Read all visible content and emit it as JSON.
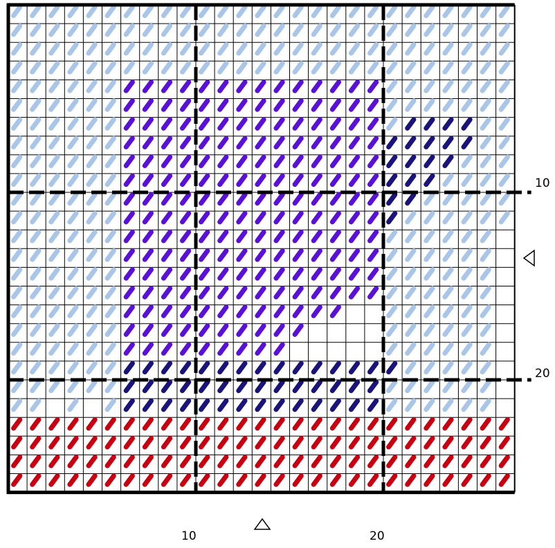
{
  "colors": {
    "light_blue": "#a9c6e8",
    "purple": "#5a10d6",
    "navy": "#1a137a",
    "red": "#c8000f",
    "grid_line": "#000000",
    "background": "#ffffff"
  },
  "grid": {
    "columns": 27,
    "rows": 26
  },
  "axis_labels": {
    "x_10": "10",
    "x_20": "20",
    "y_10": "10",
    "y_20": "20"
  },
  "markers": {
    "bottom": "column-center-marker",
    "right": "row-center-marker"
  },
  "stitch_regions": [
    {
      "color": "light_blue",
      "name": "background-fill"
    },
    {
      "color": "purple",
      "name": "main-block"
    },
    {
      "color": "navy",
      "name": "shadow-accent"
    },
    {
      "color": "red",
      "name": "bottom-band"
    }
  ]
}
